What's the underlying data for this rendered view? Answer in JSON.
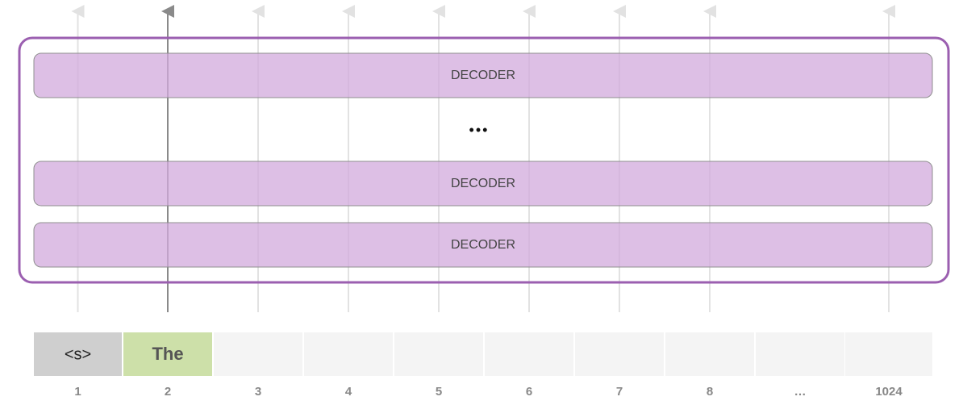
{
  "decoder_stack": {
    "layers": [
      {
        "label": "DECODER"
      },
      {
        "label": "DECODER"
      },
      {
        "label": "DECODER"
      }
    ],
    "ellipsis": "•••"
  },
  "input": {
    "tokens": [
      "<s>",
      "The"
    ],
    "positions": [
      1,
      2,
      3,
      4,
      5,
      6,
      7,
      8,
      "…",
      1024
    ]
  }
}
